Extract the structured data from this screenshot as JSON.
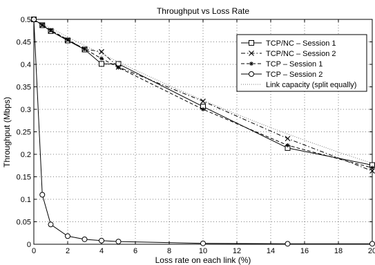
{
  "chart_data": {
    "type": "line",
    "title": "Throughput vs Loss Rate",
    "xlabel": "Loss rate on each link (%)",
    "ylabel": "Throughput (Mbps)",
    "xlim": [
      0,
      20
    ],
    "ylim": [
      0,
      0.5
    ],
    "xticks": [
      0,
      2,
      4,
      6,
      8,
      10,
      12,
      14,
      16,
      18,
      20
    ],
    "yticks": [
      0,
      0.05,
      0.1,
      0.15,
      0.2,
      0.25,
      0.3,
      0.35,
      0.4,
      0.45,
      0.5
    ],
    "grid": true,
    "legend_position": "top-right",
    "series": [
      {
        "name": "TCP/NC – Session 1",
        "marker": "square",
        "line": "solid",
        "x": [
          0,
          0.5,
          1,
          2,
          3,
          4,
          5,
          10,
          15,
          20
        ],
        "values": [
          0.5,
          0.487,
          0.474,
          0.453,
          0.433,
          0.401,
          0.401,
          0.306,
          0.214,
          0.176
        ]
      },
      {
        "name": "TCP/NC – Session 2",
        "marker": "x",
        "line": "dashdot",
        "x": [
          0,
          0.5,
          1,
          2,
          3,
          4,
          5,
          10,
          15,
          20
        ],
        "values": [
          0.5,
          0.487,
          0.475,
          0.454,
          0.434,
          0.428,
          0.394,
          0.318,
          0.235,
          0.163
        ]
      },
      {
        "name": "TCP – Session 1",
        "marker": "asterisk",
        "line": "dashed",
        "x": [
          0,
          0.5,
          1,
          2,
          3,
          4,
          5,
          10,
          15,
          20
        ],
        "values": [
          0.5,
          0.488,
          0.476,
          0.455,
          0.434,
          0.413,
          0.393,
          0.3,
          0.22,
          0.17
        ]
      },
      {
        "name": "TCP – Session 2",
        "marker": "circle",
        "line": "solid",
        "x": [
          0,
          0.5,
          1,
          2,
          3,
          4,
          5,
          10,
          15,
          20
        ],
        "values": [
          0.5,
          0.11,
          0.044,
          0.018,
          0.011,
          0.008,
          0.006,
          0.002,
          0.001,
          0.001
        ]
      },
      {
        "name": "Link capacity (split equally)",
        "marker": "none",
        "line": "dotted",
        "x": [
          0,
          2,
          4,
          6,
          8,
          10,
          12,
          14,
          16,
          18,
          20
        ],
        "values": [
          0.5,
          0.4608,
          0.4232,
          0.3872,
          0.3528,
          0.32,
          0.2888,
          0.2592,
          0.2312,
          0.2048,
          0.18
        ]
      }
    ]
  }
}
